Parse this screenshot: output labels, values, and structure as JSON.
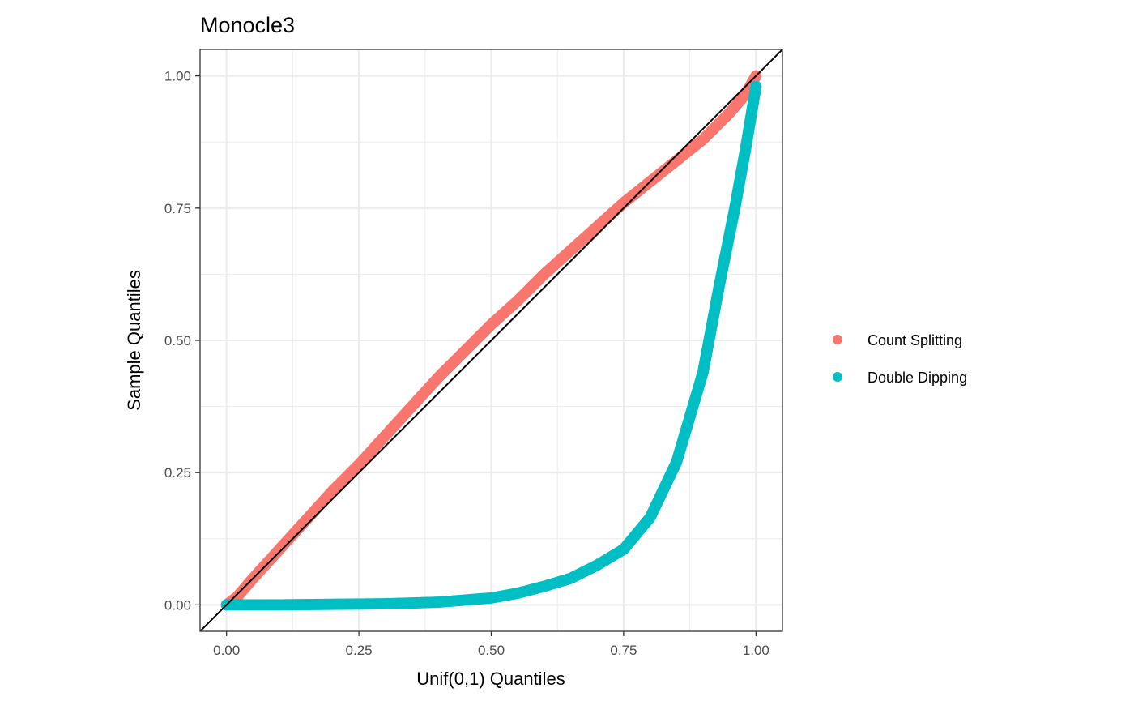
{
  "chart_data": {
    "type": "scatter",
    "title": "Monocle3",
    "xlabel": "Unif(0,1) Quantiles",
    "ylabel": "Sample Quantiles",
    "xlim": [
      -0.05,
      1.05
    ],
    "ylim": [
      -0.05,
      1.05
    ],
    "x_ticks": [
      0,
      0.25,
      0.5,
      0.75,
      1
    ],
    "x_tick_labels": [
      "0.00",
      "0.25",
      "0.50",
      "0.75",
      "1.00"
    ],
    "y_ticks": [
      0,
      0.25,
      0.5,
      0.75,
      1
    ],
    "y_tick_labels": [
      "0.00",
      "0.25",
      "0.50",
      "0.75",
      "1.00"
    ],
    "grid": true,
    "legend_position": "right",
    "reference_line": {
      "slope": 1,
      "intercept": 0,
      "color": "#000000"
    },
    "series": [
      {
        "name": "Count Splitting",
        "color": "#F8766D",
        "points": [
          [
            0.0,
            0.0
          ],
          [
            0.02,
            0.015
          ],
          [
            0.05,
            0.05
          ],
          [
            0.1,
            0.105
          ],
          [
            0.15,
            0.16
          ],
          [
            0.2,
            0.215
          ],
          [
            0.25,
            0.265
          ],
          [
            0.3,
            0.32
          ],
          [
            0.35,
            0.375
          ],
          [
            0.4,
            0.43
          ],
          [
            0.45,
            0.48
          ],
          [
            0.5,
            0.53
          ],
          [
            0.55,
            0.575
          ],
          [
            0.6,
            0.625
          ],
          [
            0.65,
            0.67
          ],
          [
            0.7,
            0.715
          ],
          [
            0.75,
            0.76
          ],
          [
            0.8,
            0.8
          ],
          [
            0.85,
            0.84
          ],
          [
            0.9,
            0.88
          ],
          [
            0.95,
            0.93
          ],
          [
            0.98,
            0.965
          ],
          [
            1.0,
            1.0
          ]
        ]
      },
      {
        "name": "Double Dipping",
        "color": "#00BFC4",
        "points": [
          [
            0.0,
            0.0
          ],
          [
            0.1,
            0.0
          ],
          [
            0.2,
            0.001
          ],
          [
            0.3,
            0.002
          ],
          [
            0.4,
            0.005
          ],
          [
            0.5,
            0.013
          ],
          [
            0.55,
            0.022
          ],
          [
            0.6,
            0.035
          ],
          [
            0.65,
            0.05
          ],
          [
            0.7,
            0.075
          ],
          [
            0.75,
            0.105
          ],
          [
            0.8,
            0.165
          ],
          [
            0.85,
            0.27
          ],
          [
            0.9,
            0.44
          ],
          [
            0.93,
            0.6
          ],
          [
            0.96,
            0.75
          ],
          [
            0.98,
            0.86
          ],
          [
            0.99,
            0.92
          ],
          [
            1.0,
            0.98
          ]
        ]
      }
    ]
  }
}
